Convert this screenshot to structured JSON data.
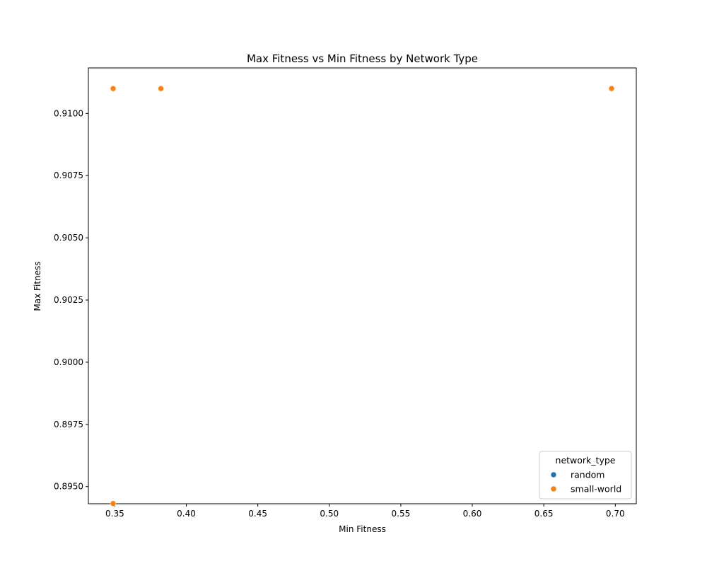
{
  "chart_data": {
    "type": "scatter",
    "title": "Max Fitness vs Min Fitness by Network Type",
    "xlabel": "Min Fitness",
    "ylabel": "Max Fitness",
    "xlim": [
      0.3315,
      0.7147
    ],
    "ylim": [
      0.89431,
      0.91183
    ],
    "x_ticks": [
      0.35,
      0.4,
      0.45,
      0.5,
      0.55,
      0.6,
      0.65,
      0.7
    ],
    "x_tick_labels": [
      "0.35",
      "0.40",
      "0.45",
      "0.50",
      "0.55",
      "0.60",
      "0.65",
      "0.70"
    ],
    "y_ticks": [
      0.895,
      0.8975,
      0.9,
      0.9025,
      0.905,
      0.9075,
      0.91
    ],
    "y_tick_labels": [
      "0.8950",
      "0.8975",
      "0.9000",
      "0.9025",
      "0.9050",
      "0.9075",
      "0.9100"
    ],
    "grid": false,
    "legend": {
      "title": "network_type",
      "placement": "lower-right"
    },
    "series": [
      {
        "name": "random",
        "color": "#1f77b4",
        "points": []
      },
      {
        "name": "small-world",
        "color": "#ff7f0e",
        "points": [
          {
            "x": 0.3488,
            "y": 0.911
          },
          {
            "x": 0.3822,
            "y": 0.911
          },
          {
            "x": 0.6974,
            "y": 0.911
          },
          {
            "x": 0.3488,
            "y": 0.89432
          }
        ]
      }
    ]
  }
}
